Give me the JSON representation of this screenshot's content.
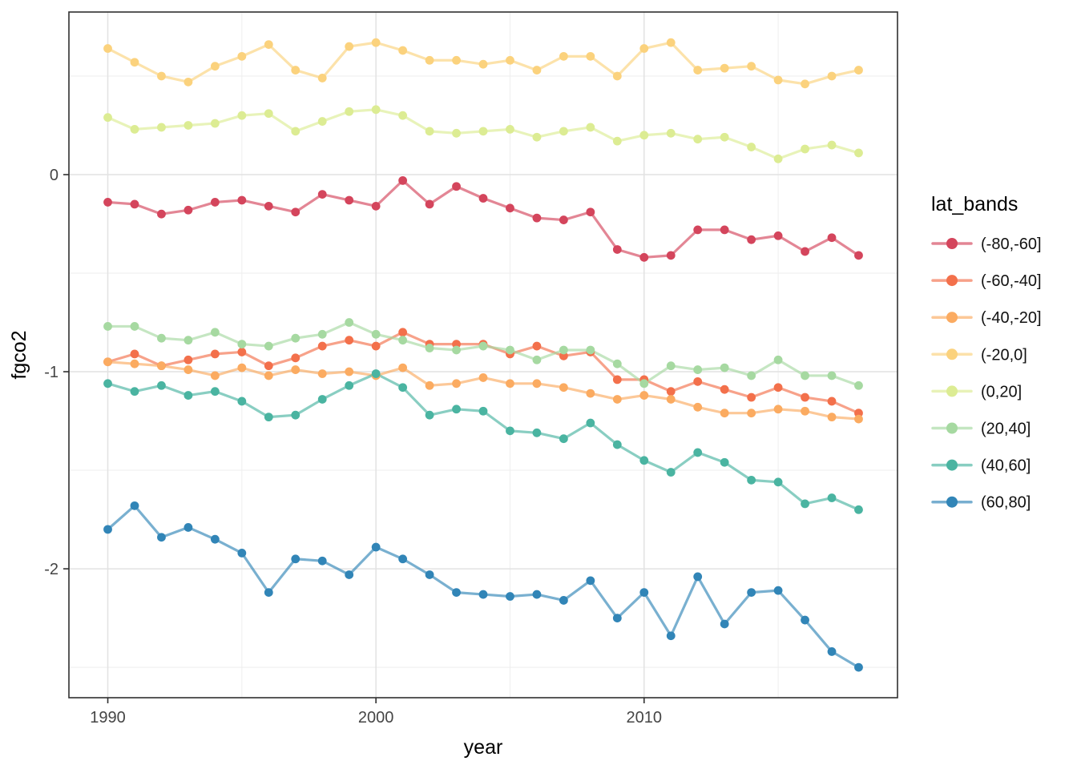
{
  "figure": {
    "background": "#ffffff",
    "panel_border_color": "#303030",
    "grid_major_color": "#e2e2e2",
    "grid_minor_color": "#eeeeee"
  },
  "chart_data": {
    "type": "line",
    "title": "",
    "xlabel": "year",
    "ylabel": "fgco2",
    "legend_title": "lat_bands",
    "legend_position": "right",
    "grid": true,
    "x": [
      1990,
      1991,
      1992,
      1993,
      1994,
      1995,
      1996,
      1997,
      1998,
      1999,
      2000,
      2001,
      2002,
      2003,
      2004,
      2005,
      2006,
      2007,
      2008,
      2009,
      2010,
      2011,
      2012,
      2013,
      2014,
      2015,
      2016,
      2017,
      2018
    ],
    "xlim": [
      1988.55,
      2019.45
    ],
    "ylim": [
      -2.654,
      0.825
    ],
    "x_major_ticks": [
      1990,
      2000,
      2010
    ],
    "x_minor_ticks": [
      1995,
      2005,
      2015
    ],
    "y_major_ticks": [
      0,
      -1,
      -2
    ],
    "y_minor_ticks": [
      0.5,
      -0.5,
      -1.5,
      -2.5
    ],
    "series": [
      {
        "name": "(-80,-60]",
        "color": "#d4455c",
        "values": [
          -0.14,
          -0.15,
          -0.2,
          -0.18,
          -0.14,
          -0.13,
          -0.16,
          -0.19,
          -0.1,
          -0.13,
          -0.16,
          -0.03,
          -0.15,
          -0.06,
          -0.12,
          -0.17,
          -0.22,
          -0.23,
          -0.19,
          -0.38,
          -0.42,
          -0.41,
          -0.28,
          -0.28,
          -0.33,
          -0.31,
          -0.39,
          -0.32,
          -0.41
        ]
      },
      {
        "name": "(-60,-40]",
        "color": "#f3704b",
        "values": [
          -0.95,
          -0.91,
          -0.97,
          -0.94,
          -0.91,
          -0.9,
          -0.97,
          -0.93,
          -0.87,
          -0.84,
          -0.87,
          -0.8,
          -0.86,
          -0.86,
          -0.86,
          -0.91,
          -0.87,
          -0.92,
          -0.9,
          -1.04,
          -1.04,
          -1.1,
          -1.05,
          -1.09,
          -1.13,
          -1.08,
          -1.13,
          -1.15,
          -1.21
        ]
      },
      {
        "name": "(-40,-20]",
        "color": "#fbab61",
        "values": [
          -0.95,
          -0.96,
          -0.97,
          -0.99,
          -1.02,
          -0.98,
          -1.02,
          -0.99,
          -1.01,
          -1.0,
          -1.02,
          -0.98,
          -1.07,
          -1.06,
          -1.03,
          -1.06,
          -1.06,
          -1.08,
          -1.11,
          -1.14,
          -1.12,
          -1.14,
          -1.18,
          -1.21,
          -1.21,
          -1.19,
          -1.2,
          -1.23,
          -1.24
        ]
      },
      {
        "name": "(-20,0]",
        "color": "#fbd27d",
        "values": [
          0.64,
          0.57,
          0.5,
          0.47,
          0.55,
          0.6,
          0.66,
          0.53,
          0.49,
          0.65,
          0.67,
          0.63,
          0.58,
          0.58,
          0.56,
          0.58,
          0.53,
          0.6,
          0.6,
          0.5,
          0.64,
          0.67,
          0.53,
          0.54,
          0.55,
          0.48,
          0.46,
          0.5,
          0.53
        ]
      },
      {
        "name": "(0,20]",
        "color": "#dcec93",
        "values": [
          0.29,
          0.23,
          0.24,
          0.25,
          0.26,
          0.3,
          0.31,
          0.22,
          0.27,
          0.32,
          0.33,
          0.3,
          0.22,
          0.21,
          0.22,
          0.23,
          0.19,
          0.22,
          0.24,
          0.17,
          0.2,
          0.21,
          0.18,
          0.19,
          0.14,
          0.08,
          0.13,
          0.15,
          0.11
        ]
      },
      {
        "name": "(20,40]",
        "color": "#a6d9a1",
        "values": [
          -0.77,
          -0.77,
          -0.83,
          -0.84,
          -0.8,
          -0.86,
          -0.87,
          -0.83,
          -0.81,
          -0.75,
          -0.81,
          -0.84,
          -0.88,
          -0.89,
          -0.87,
          -0.89,
          -0.94,
          -0.89,
          -0.89,
          -0.96,
          -1.06,
          -0.97,
          -0.99,
          -0.98,
          -1.02,
          -0.94,
          -1.02,
          -1.02,
          -1.07
        ]
      },
      {
        "name": "(40,60]",
        "color": "#4ab4a1",
        "values": [
          -1.06,
          -1.1,
          -1.07,
          -1.12,
          -1.1,
          -1.15,
          -1.23,
          -1.22,
          -1.14,
          -1.07,
          -1.01,
          -1.08,
          -1.22,
          -1.19,
          -1.2,
          -1.3,
          -1.31,
          -1.34,
          -1.26,
          -1.37,
          -1.45,
          -1.51,
          -1.41,
          -1.46,
          -1.55,
          -1.56,
          -1.67,
          -1.64,
          -1.7
        ]
      },
      {
        "name": "(60,80]",
        "color": "#3185b7",
        "values": [
          -1.8,
          -1.68,
          -1.84,
          -1.79,
          -1.85,
          -1.92,
          -2.12,
          -1.95,
          -1.96,
          -2.03,
          -1.89,
          -1.95,
          -2.03,
          -2.12,
          -2.13,
          -2.14,
          -2.13,
          -2.16,
          -2.06,
          -2.25,
          -2.12,
          -2.34,
          -2.04,
          -2.28,
          -2.12,
          -2.11,
          -2.26,
          -2.42,
          -2.5
        ]
      }
    ]
  }
}
